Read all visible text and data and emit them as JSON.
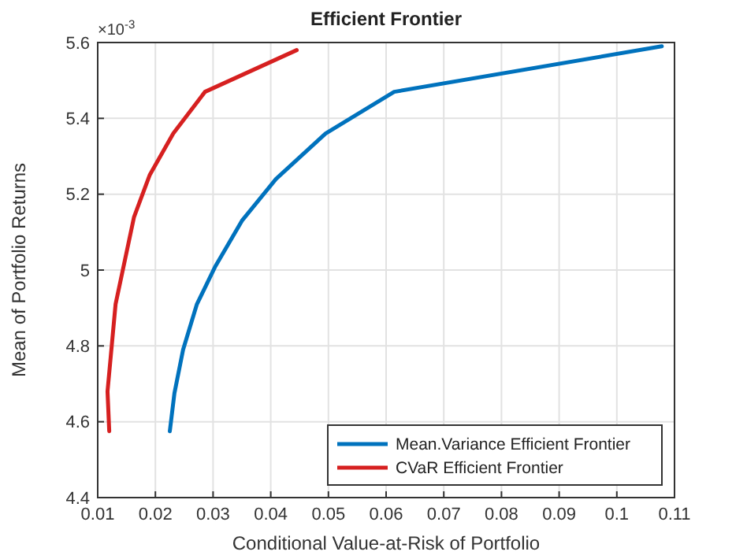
{
  "chart_data": {
    "type": "line",
    "title": "Efficient Frontier",
    "xlabel": "Conditional Value-at-Risk of Portfolio",
    "ylabel": "Mean of Portfolio Returns",
    "annotations": [
      "×10$^{-3}$"
    ],
    "xlim": [
      0.01,
      0.11
    ],
    "xticks": [
      0.01,
      0.02,
      0.03,
      0.04,
      0.05,
      0.06,
      0.07,
      0.08,
      0.09,
      0.1,
      0.11
    ],
    "ylim": [
      4.4,
      5.6
    ],
    "yticks": [
      4.4,
      4.6,
      4.8,
      5,
      5.2,
      5.4,
      5.6
    ],
    "grid": true,
    "legend": "bottom right",
    "line_style": "solid",
    "series": [
      {
        "name": "Mean.Variance Efficient Frontier",
        "color": "#0072bd",
        "x": [
          0.0225,
          0.0233,
          0.0248,
          0.0272,
          0.0304,
          0.035,
          0.0409,
          0.0495,
          0.0614,
          0.1078
        ],
        "values": [
          4.575,
          4.675,
          4.79,
          4.91,
          5.01,
          5.13,
          5.24,
          5.36,
          5.47,
          5.59
        ]
      },
      {
        "name": "CVaR Efficient Frontier",
        "color": "#d62020",
        "x": [
          0.012,
          0.0117,
          0.0131,
          0.0163,
          0.019,
          0.0231,
          0.0286,
          0.0445
        ],
        "values": [
          4.575,
          4.68,
          4.91,
          5.14,
          5.25,
          5.36,
          5.47,
          5.58
        ]
      }
    ]
  }
}
